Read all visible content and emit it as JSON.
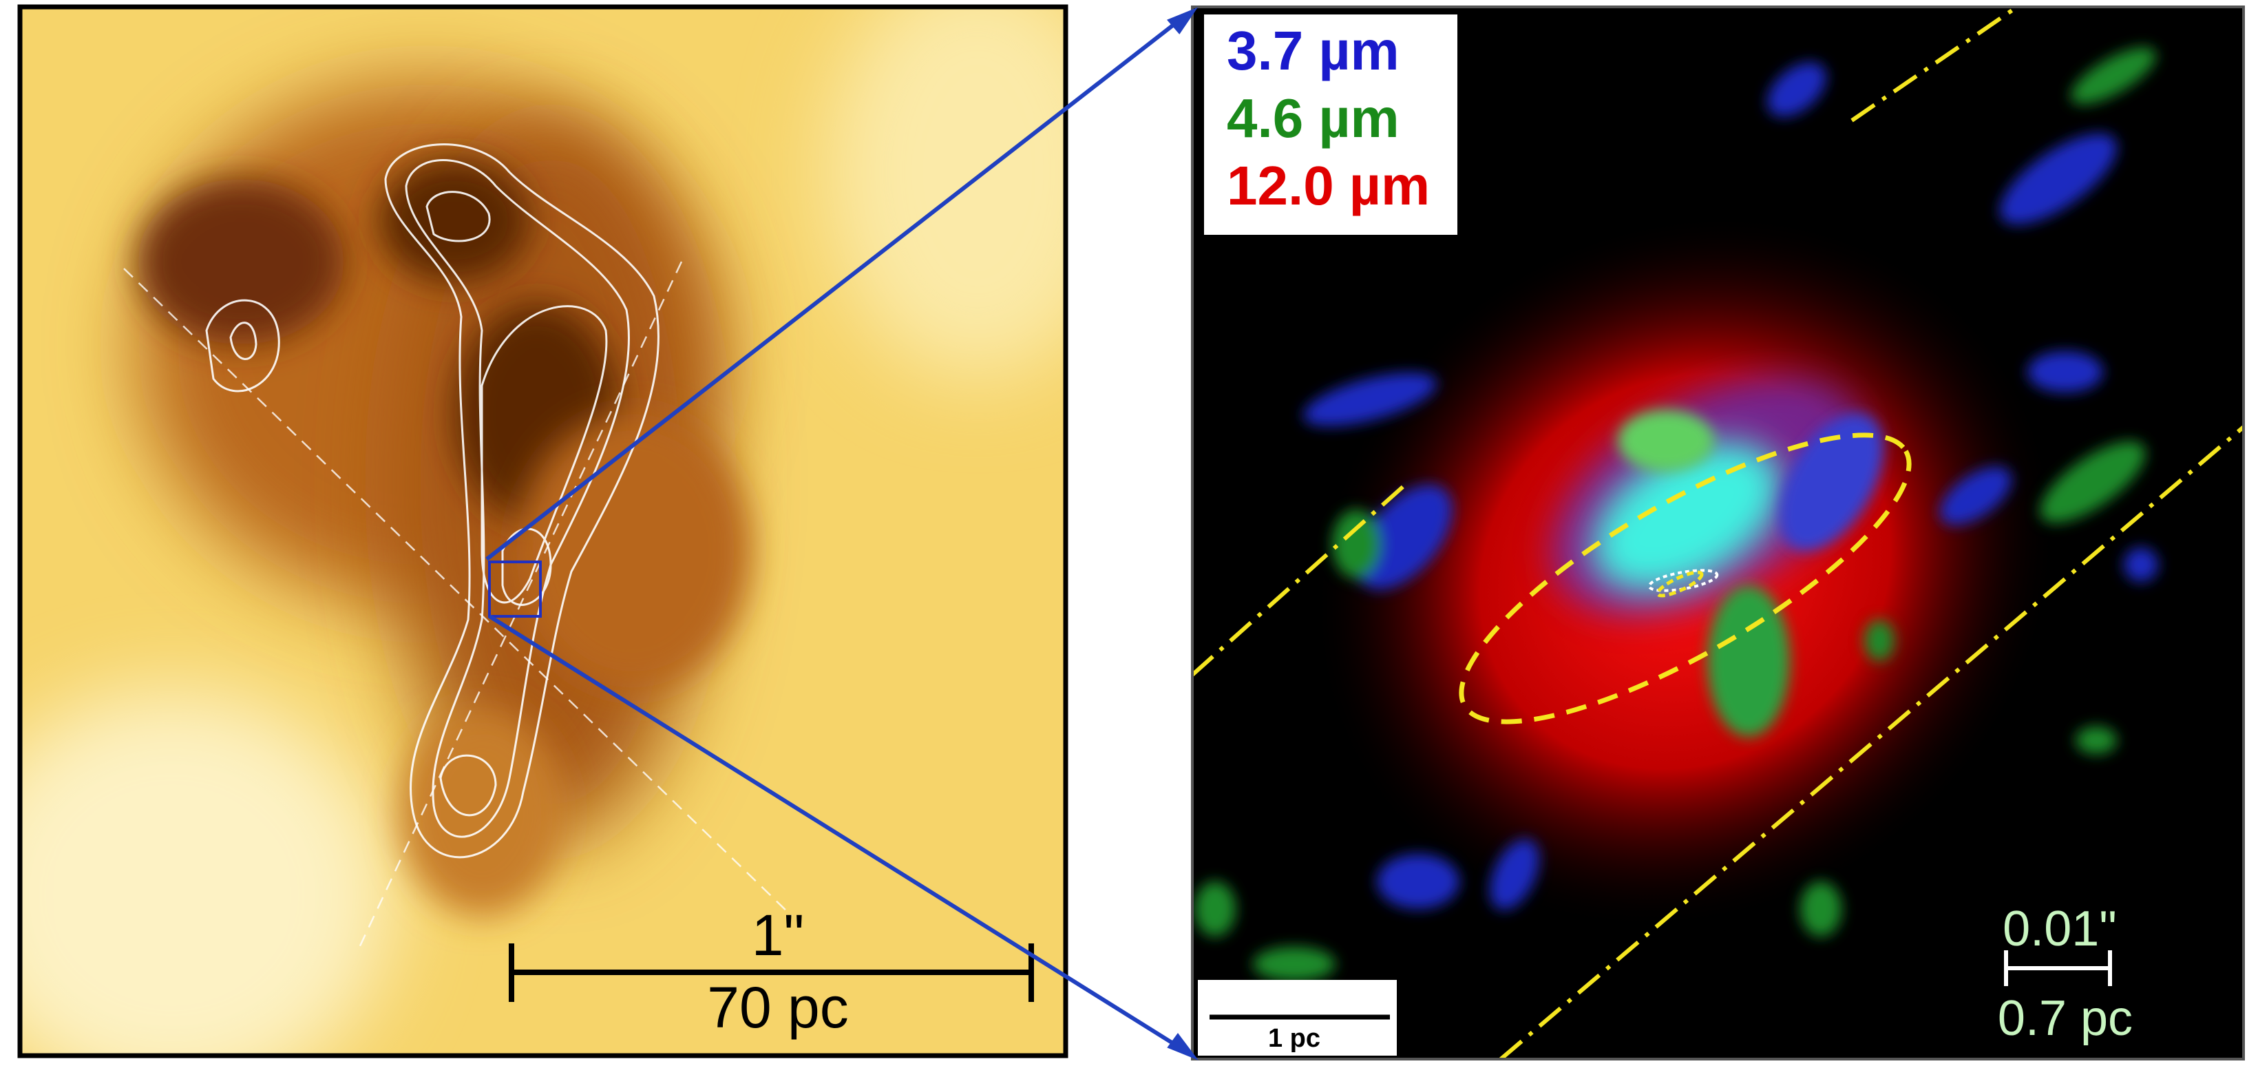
{
  "left_panel": {
    "scale_bar": {
      "angle": "1\"",
      "distance": "70 pc"
    }
  },
  "right_panel": {
    "legend": [
      "3.7 µm",
      "4.6 µm",
      "12.0 µm"
    ],
    "scale_bar_pc": "1 pc",
    "scale_bar_small": {
      "angle": "0.01\"",
      "distance": "0.7 pc"
    }
  }
}
